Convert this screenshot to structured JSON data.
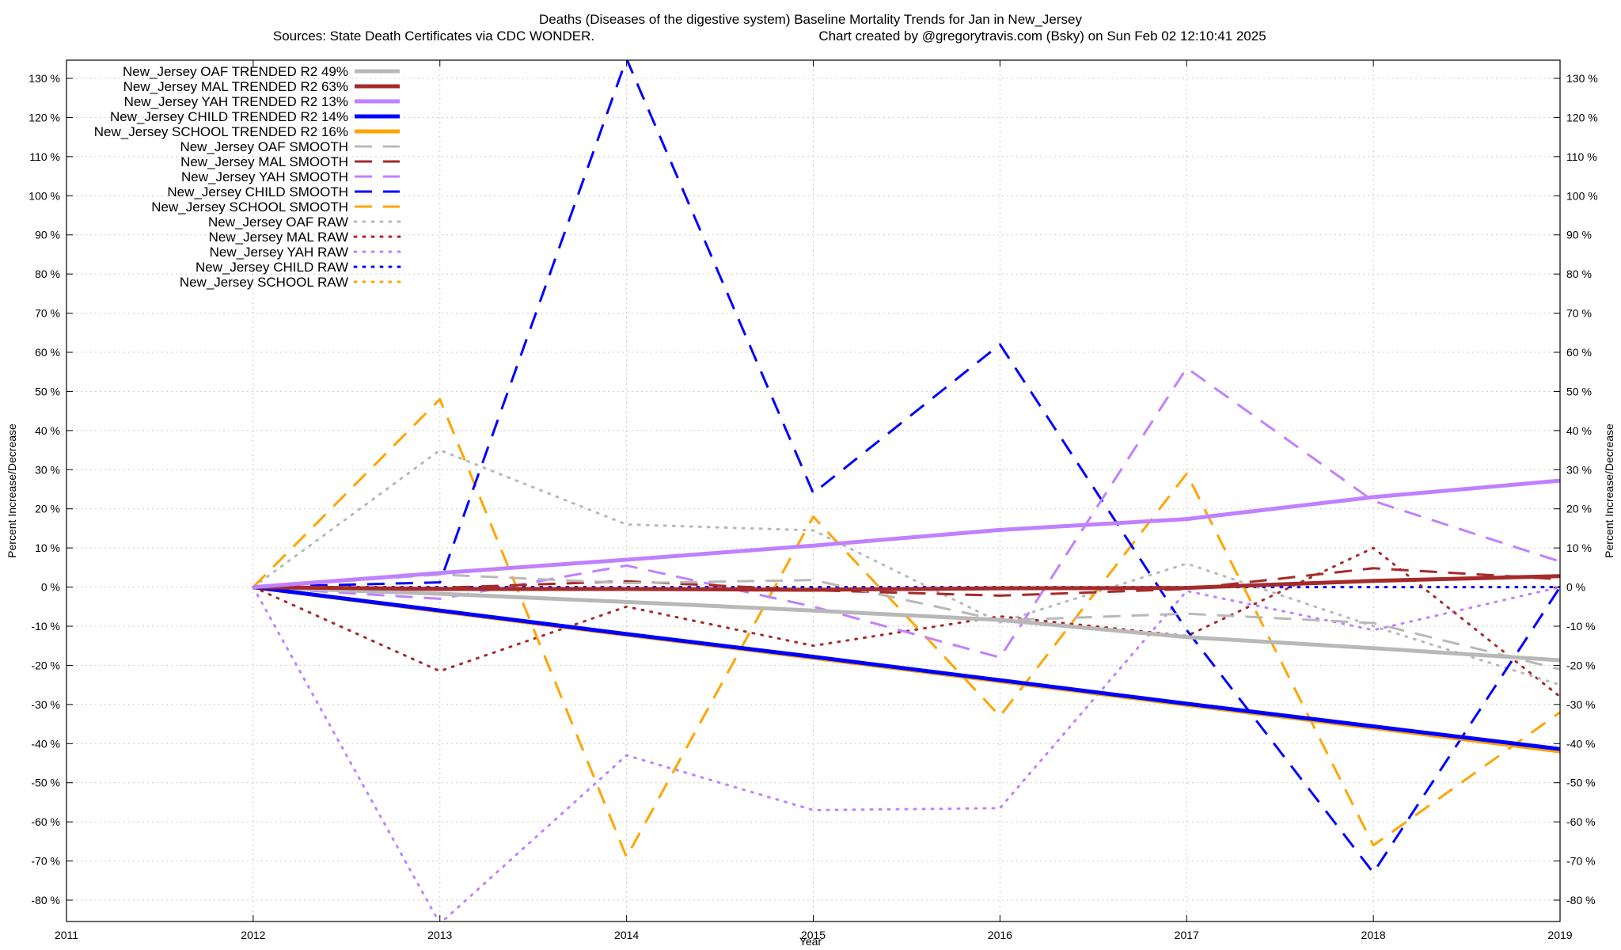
{
  "chart_data": {
    "type": "line",
    "title_line1": "Deaths (Diseases of the digestive system)  Baseline Mortality Trends for Jan in New_Jersey",
    "title_line2_left": "Sources: State Death Certificates via CDC WONDER.",
    "title_line2_right": "Chart created by @gregorytravis.com (Bsky) on Sun Feb 02 12:10:41 2025",
    "xlabel": "Year",
    "ylabel_left": "Percent Increase/Decrease",
    "ylabel_right": "Percent Increase/Decrease",
    "xlim": [
      2011,
      2019
    ],
    "ylim": [
      -86,
      137
    ],
    "x_ticks": [
      "2011",
      "2012",
      "2013",
      "2014",
      "2015",
      "2016",
      "2017",
      "2018",
      "2019"
    ],
    "y_ticks": [
      "130 %",
      "120 %",
      "110 %",
      "100 %",
      "90 %",
      "80 %",
      "70 %",
      "60 %",
      "50 %",
      "40 %",
      "30 %",
      "20 %",
      "10 %",
      "0 %",
      "-10 %",
      "-20 %",
      "-30 %",
      "-40 %",
      "-50 %",
      "-60 %",
      "-70 %",
      "-80 %"
    ],
    "y_tick_values": [
      130,
      120,
      110,
      100,
      90,
      80,
      70,
      60,
      50,
      40,
      30,
      20,
      10,
      0,
      -10,
      -20,
      -30,
      -40,
      -50,
      -60,
      -70,
      -80
    ],
    "grid": true,
    "legend_position": "top-left",
    "x": [
      2012,
      2013,
      2014,
      2015,
      2016,
      2017,
      2018,
      2019
    ],
    "series": [
      {
        "name": "New_Jersey OAF TRENDED R2  49%",
        "style": "solid",
        "color": "#b8b8b8",
        "values": [
          0,
          -1.7,
          -3.8,
          -6.0,
          -8.4,
          -12.8,
          -15.6,
          -18.7
        ]
      },
      {
        "name": "New_Jersey MAL TRENDED R2  63%",
        "style": "solid",
        "color": "#a52a2a",
        "values": [
          0,
          -0.5,
          -0.5,
          -0.7,
          -0.3,
          -0.2,
          1.6,
          2.8
        ]
      },
      {
        "name": "New_Jersey YAH TRENDED R2  13%",
        "style": "solid",
        "color": "#c080ff",
        "values": [
          0,
          3.6,
          7.0,
          10.6,
          14.6,
          17.4,
          23.0,
          27.2
        ]
      },
      {
        "name": "New_Jersey CHILD TRENDED R2  14%",
        "style": "solid",
        "color": "#0000ff",
        "values": [
          0,
          -6.0,
          -12.0,
          -17.8,
          -23.8,
          -29.8,
          -35.6,
          -41.4
        ]
      },
      {
        "name": "New_Jersey SCHOOL TRENDED R2  16%",
        "style": "solid",
        "color": "#ffa500",
        "values": [
          0,
          -6.2,
          -12.2,
          -18.1,
          -24.1,
          -30.1,
          -36.0,
          -42.0
        ]
      },
      {
        "name": "New_Jersey OAF SMOOTH",
        "style": "dash",
        "color": "#b8b8b8",
        "values": [
          0,
          3.2,
          1.0,
          1.8,
          -8.5,
          -6.8,
          -9.2,
          -21.0
        ]
      },
      {
        "name": "New_Jersey MAL SMOOTH",
        "style": "dash",
        "color": "#a52a2a",
        "values": [
          0,
          -0.2,
          1.5,
          -0.8,
          -2.2,
          -0.5,
          4.8,
          2.0
        ]
      },
      {
        "name": "New_Jersey YAH SMOOTH",
        "style": "dash",
        "color": "#c080ff",
        "values": [
          0,
          -3.0,
          5.5,
          -5.0,
          -18.0,
          56.0,
          22.0,
          6.5
        ]
      },
      {
        "name": "New_Jersey CHILD SMOOTH",
        "style": "dash",
        "color": "#0000ff",
        "values": [
          0,
          1.2,
          135.0,
          24.0,
          62.0,
          -11.0,
          -73.0,
          0
        ]
      },
      {
        "name": "New_Jersey SCHOOL SMOOTH",
        "style": "dash",
        "color": "#ffa500",
        "values": [
          0,
          48.0,
          -69.0,
          18.0,
          -33.0,
          29.0,
          -66.0,
          -32.0
        ]
      },
      {
        "name": "New_Jersey OAF RAW",
        "style": "dot",
        "color": "#b8b8b8",
        "values": [
          0,
          35.0,
          16.0,
          14.5,
          -9.0,
          6.0,
          -10.0,
          -25.0
        ]
      },
      {
        "name": "New_Jersey MAL RAW",
        "style": "dot",
        "color": "#a52a2a",
        "values": [
          0,
          -21.5,
          -5.0,
          -15.0,
          -7.5,
          -12.5,
          10.0,
          -28.0
        ]
      },
      {
        "name": "New_Jersey YAH RAW",
        "style": "dot",
        "color": "#c080ff",
        "values": [
          0,
          -86.0,
          -43.0,
          -57.0,
          -56.5,
          -1.0,
          -11.0,
          0
        ]
      },
      {
        "name": "New_Jersey CHILD RAW",
        "style": "dot",
        "color": "#0000ff",
        "values": [
          0,
          0,
          0,
          0,
          0,
          0,
          0,
          0
        ]
      },
      {
        "name": "New_Jersey SCHOOL RAW",
        "style": "dot",
        "color": "#ffa500",
        "values": [
          0,
          0,
          0,
          0,
          0,
          0,
          0,
          0
        ]
      }
    ]
  }
}
